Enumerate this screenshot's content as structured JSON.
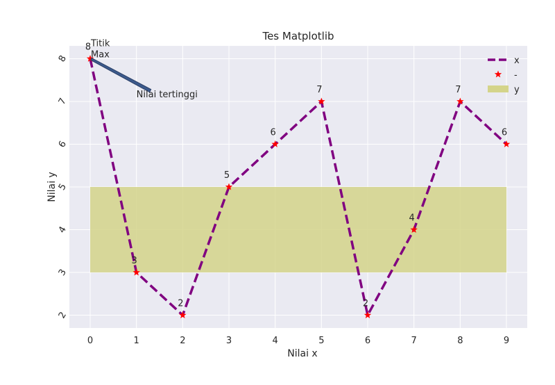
{
  "chart_data": {
    "type": "line",
    "title": "Tes Matplotlib",
    "xlabel": "Nilai x",
    "ylabel": "Nilai y",
    "x": [
      0,
      1,
      2,
      3,
      4,
      5,
      6,
      7,
      8,
      9
    ],
    "y": [
      8,
      3,
      2,
      5,
      6,
      7,
      2,
      4,
      7,
      6
    ],
    "xlim": [
      -0.45,
      9.45
    ],
    "ylim": [
      1.7,
      8.3
    ],
    "xticks": [
      "0",
      "1",
      "2",
      "3",
      "4",
      "5",
      "6",
      "7",
      "8",
      "9"
    ],
    "yticks": [
      "2",
      "3",
      "4",
      "5",
      "6",
      "7",
      "8"
    ],
    "point_labels": [
      "8",
      "3",
      "2",
      "5",
      "6",
      "7",
      "2",
      "4",
      "7",
      "6"
    ],
    "band": {
      "x_from": 0,
      "x_to": 9,
      "y_from": 3,
      "y_to": 5
    },
    "series": [
      {
        "name": "x",
        "style": "dashed line",
        "color": "#800080"
      },
      {
        "name": "-",
        "style": "star markers",
        "color": "#ff0000"
      },
      {
        "name": "y",
        "style": "filled band",
        "color": "#d4d48a"
      }
    ],
    "annotation": {
      "text": "Nilai tertinggi",
      "target_label_lines": [
        "Titik",
        "Max"
      ],
      "x": 0,
      "y": 8
    },
    "grid": true,
    "legend_position": "top-right",
    "background": "#eaeaf2"
  }
}
